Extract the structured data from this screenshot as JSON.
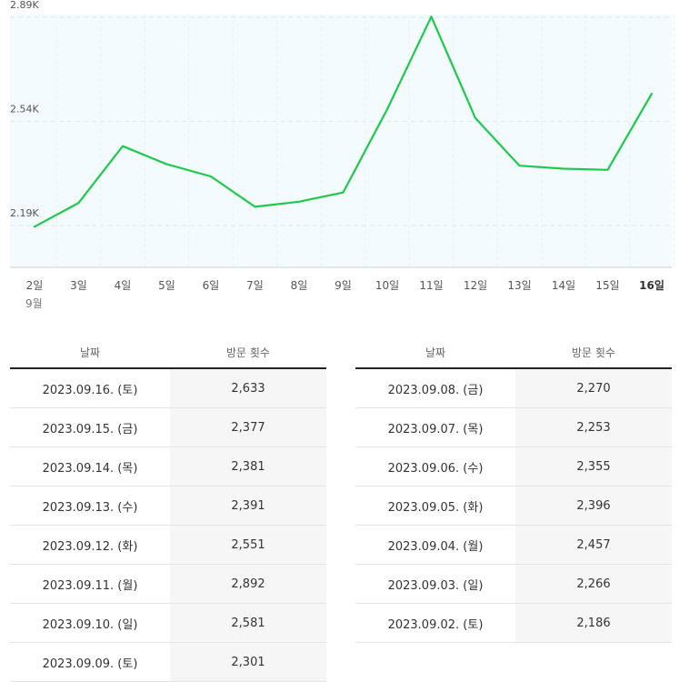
{
  "chart_data": {
    "type": "line",
    "x_group_label": "9월",
    "categories": [
      "2일",
      "3일",
      "4일",
      "5일",
      "6일",
      "7일",
      "8일",
      "9일",
      "10일",
      "11일",
      "12일",
      "13일",
      "14일",
      "15일",
      "16일"
    ],
    "values": [
      2186,
      2266,
      2457,
      2396,
      2355,
      2253,
      2270,
      2301,
      2581,
      2892,
      2551,
      2391,
      2381,
      2377,
      2633
    ],
    "yticks": [
      {
        "value": 2190,
        "label": "2.19K"
      },
      {
        "value": 2540,
        "label": "2.54K"
      },
      {
        "value": 2890,
        "label": "2.89K"
      }
    ],
    "ylim": [
      2150,
      2900
    ],
    "line_color": "#1ec94c",
    "plot_bg": "#f4fbfe",
    "grid": true,
    "highlight_category": "16일"
  },
  "table_headers": {
    "date": "날짜",
    "visits": "방문 횟수"
  },
  "left_rows": [
    {
      "date": "2023.09.16. (토)",
      "visits": "2,633"
    },
    {
      "date": "2023.09.15. (금)",
      "visits": "2,377"
    },
    {
      "date": "2023.09.14. (목)",
      "visits": "2,381"
    },
    {
      "date": "2023.09.13. (수)",
      "visits": "2,391"
    },
    {
      "date": "2023.09.12. (화)",
      "visits": "2,551"
    },
    {
      "date": "2023.09.11. (월)",
      "visits": "2,892"
    },
    {
      "date": "2023.09.10. (일)",
      "visits": "2,581"
    },
    {
      "date": "2023.09.09. (토)",
      "visits": "2,301"
    }
  ],
  "right_rows": [
    {
      "date": "2023.09.08. (금)",
      "visits": "2,270"
    },
    {
      "date": "2023.09.07. (목)",
      "visits": "2,253"
    },
    {
      "date": "2023.09.06. (수)",
      "visits": "2,355"
    },
    {
      "date": "2023.09.05. (화)",
      "visits": "2,396"
    },
    {
      "date": "2023.09.04. (월)",
      "visits": "2,457"
    },
    {
      "date": "2023.09.03. (일)",
      "visits": "2,266"
    },
    {
      "date": "2023.09.02. (토)",
      "visits": "2,186"
    }
  ]
}
